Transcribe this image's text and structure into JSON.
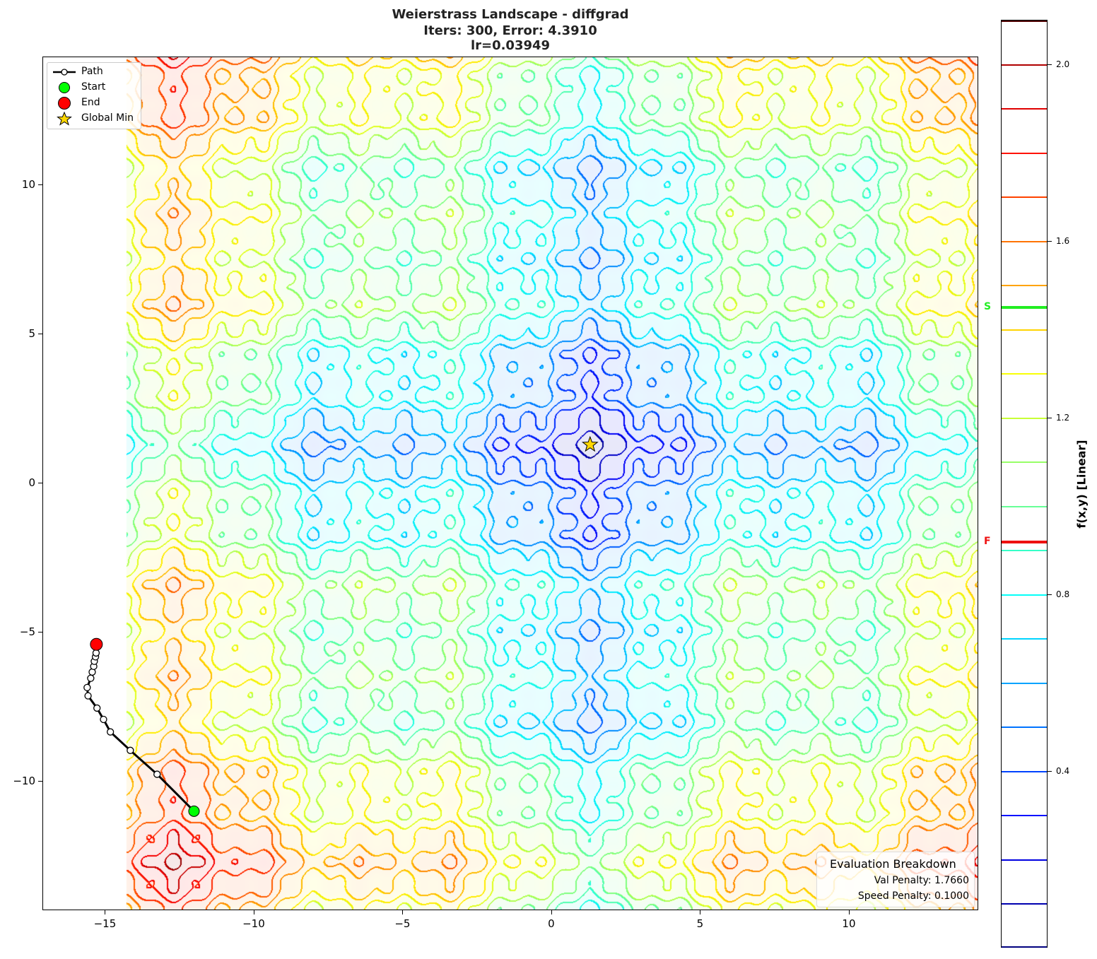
{
  "title": {
    "line1": "Weierstrass Landscape - diffgrad",
    "line2": "Iters: 300, Error: 4.3910",
    "line3": "lr=0.03949"
  },
  "chart_data": {
    "type": "contour",
    "function": "Weierstrass",
    "optimizer": "diffgrad",
    "xlim": [
      -17.1,
      14.3
    ],
    "ylim": [
      -14.3,
      14.3
    ],
    "domain_x": [
      -14.3,
      14.3
    ],
    "x_ticks": [
      -15,
      -10,
      -5,
      0,
      5,
      10
    ],
    "x_tick_labels": [
      "−15",
      "−10",
      "−5",
      "0",
      "5",
      "10"
    ],
    "y_ticks": [
      10,
      5,
      0,
      -5,
      -10
    ],
    "y_tick_labels": [
      "10",
      "5",
      "0",
      "−5",
      "−10"
    ],
    "contour_levels": [
      0.0,
      0.1,
      0.2,
      0.3,
      0.4,
      0.5,
      0.6,
      0.7,
      0.8,
      0.9,
      1.0,
      1.1,
      1.2,
      1.3,
      1.4,
      1.5,
      1.6,
      1.7,
      1.8,
      1.9,
      2.0,
      2.1
    ],
    "colormap": "jet",
    "global_min": [
      1.28,
      1.3
    ],
    "path": [
      [
        -12.03,
        -11.0
      ],
      [
        -13.27,
        -9.76
      ],
      [
        -14.17,
        -8.96
      ],
      [
        -14.84,
        -8.34
      ],
      [
        -15.07,
        -7.92
      ],
      [
        -15.29,
        -7.54
      ],
      [
        -15.59,
        -7.13
      ],
      [
        -15.62,
        -6.85
      ],
      [
        -15.5,
        -6.54
      ],
      [
        -15.45,
        -6.33
      ],
      [
        -15.4,
        -6.14
      ],
      [
        -15.38,
        -5.97
      ],
      [
        -15.34,
        -5.82
      ],
      [
        -15.32,
        -5.69
      ],
      [
        -15.31,
        -5.4
      ]
    ],
    "legend": {
      "placement": "upper-left",
      "entries": [
        "Path",
        "Start",
        "End",
        "Global Min"
      ]
    },
    "colors": {
      "path": "#000000",
      "start": "#00ff00",
      "end": "#ff0000",
      "global_min": "#ffd700"
    },
    "colorbar": {
      "label": "f(x,y) [Linear]",
      "range": [
        0.0,
        2.1
      ],
      "ticks": [
        2.0,
        1.6,
        1.2,
        0.8,
        0.4
      ],
      "tick_labels": [
        "2.0",
        "1.6",
        "1.2",
        "0.8",
        "0.4"
      ],
      "markers": [
        {
          "label": "S",
          "value": 1.45,
          "color": "#22ee22"
        },
        {
          "label": "F",
          "value": 0.92,
          "color": "#ee1111"
        }
      ]
    }
  },
  "evaluation": {
    "heading": "Evaluation Breakdown",
    "val_penalty": "Val Penalty: 1.7660",
    "speed_penalty": "Speed Penalty: 0.1000"
  }
}
